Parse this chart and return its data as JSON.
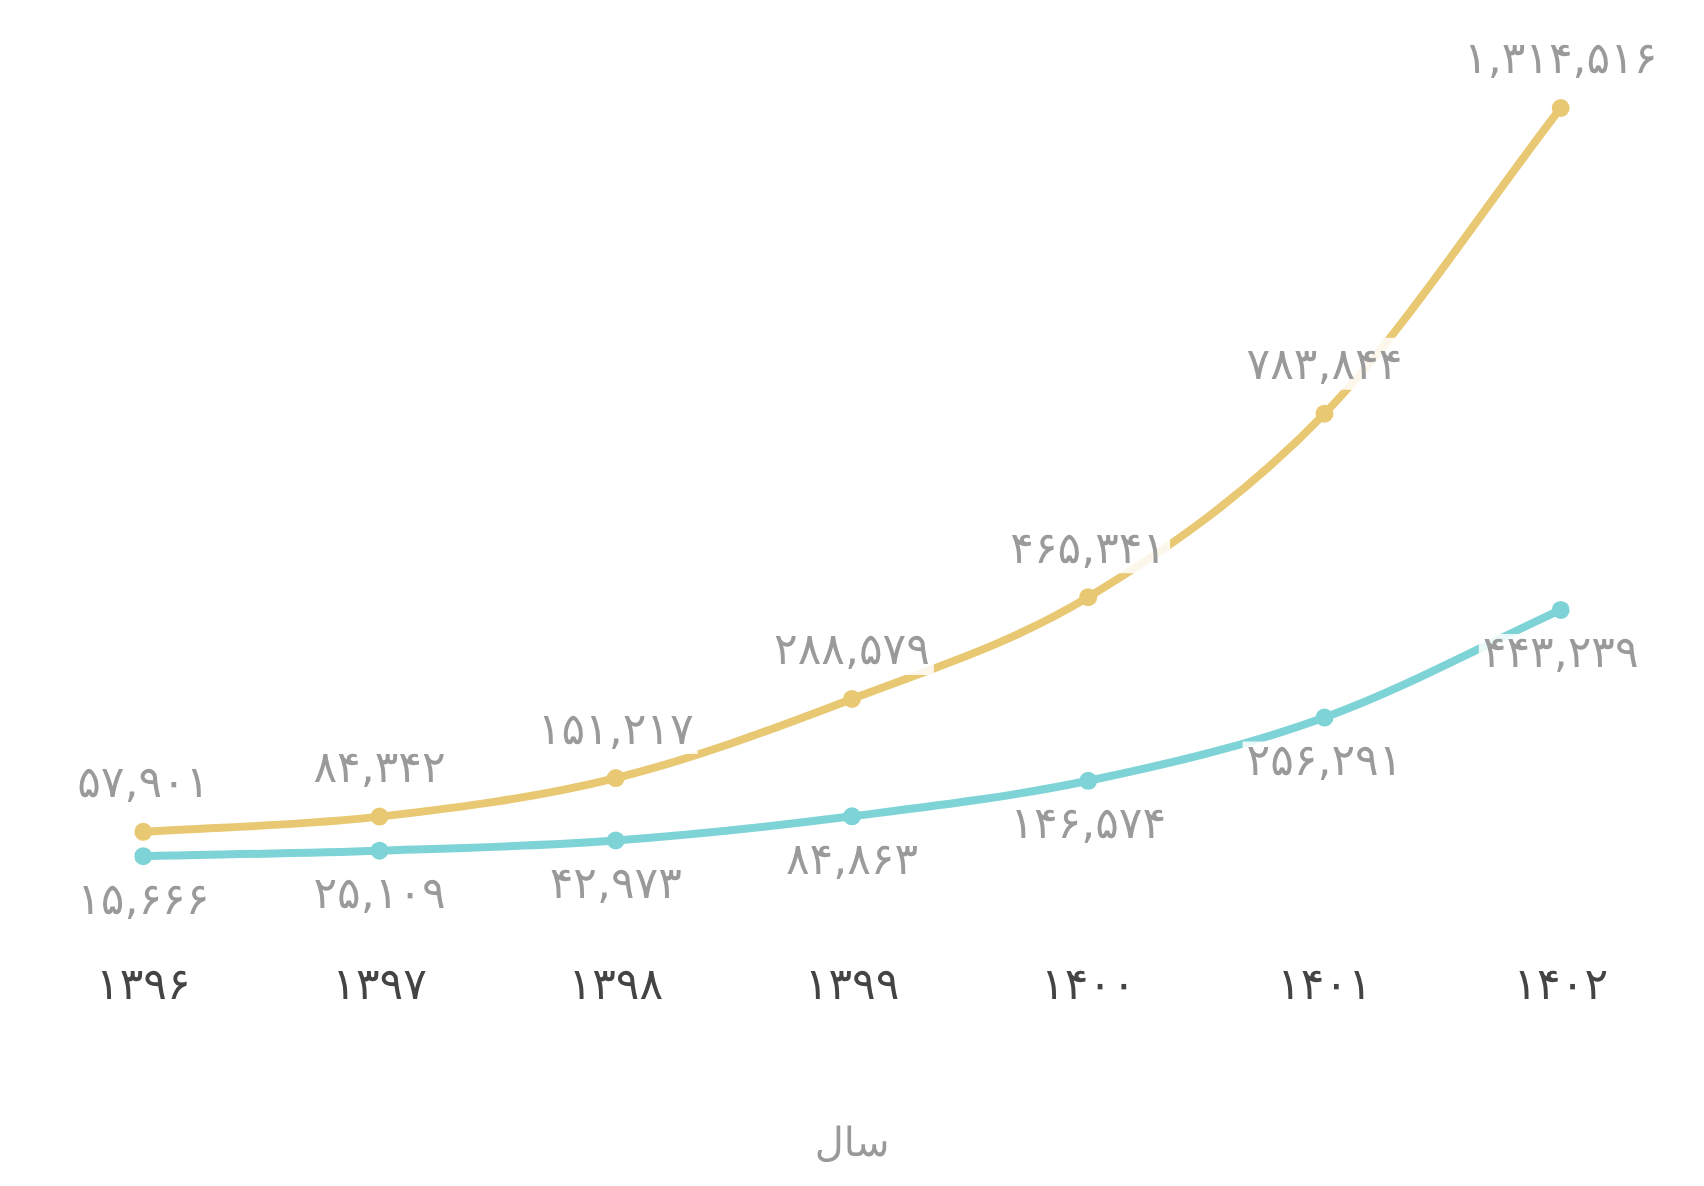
{
  "chart_data": {
    "type": "line",
    "xlabel": "سال",
    "categories": [
      "۱۳۹۶",
      "۱۳۹۷",
      "۱۳۹۸",
      "۱۳۹۹",
      "۱۴۰۰",
      "۱۴۰۱",
      "۱۴۰۲"
    ],
    "series": [
      {
        "color": "#e8c872",
        "values": [
          57901,
          84342,
          151217,
          288579,
          465341,
          783844,
          1314516
        ],
        "value_labels": [
          "۵۷,۹۰۱",
          "۸۴,۳۴۲",
          "۱۵۱,۲۱۷",
          "۲۸۸,۵۷۹",
          "۴۶۵,۳۴۱",
          "۷۸۳,۸۴۴",
          "۱,۳۱۴,۵۱۶"
        ]
      },
      {
        "color": "#7dd3d6",
        "values": [
          15666,
          25109,
          42973,
          84863,
          146574,
          256291,
          443239
        ],
        "value_labels": [
          "۱۵,۶۶۶",
          "۲۵,۱۰۹",
          "۴۲,۹۷۳",
          "۸۴,۸۶۳",
          "۱۴۶,۵۷۴",
          "۲۵۶,۲۹۱",
          "۴۴۳,۲۳۹"
        ]
      }
    ],
    "marker": "circle",
    "grid": false,
    "legend": false,
    "tick_labels": "x"
  }
}
